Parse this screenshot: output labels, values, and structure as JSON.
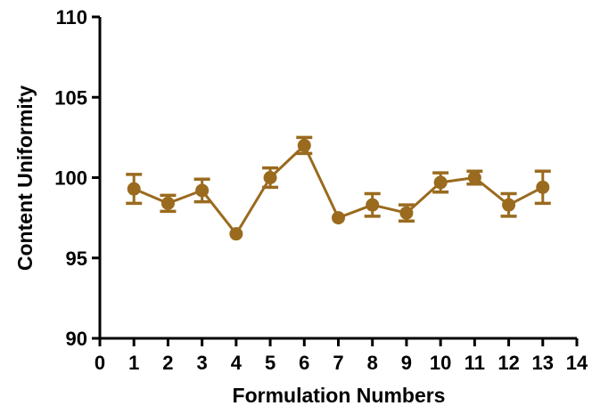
{
  "chart_data": {
    "type": "line",
    "title": "",
    "xlabel": "Formulation Numbers",
    "ylabel": "Content Uniformity",
    "xlim": [
      0,
      14
    ],
    "ylim": [
      90,
      110
    ],
    "xticks": [
      "0",
      "1",
      "2",
      "3",
      "4",
      "5",
      "6",
      "7",
      "8",
      "9",
      "10",
      "11",
      "12",
      "13",
      "14"
    ],
    "yticks": [
      "90",
      "95",
      "100",
      "105",
      "110"
    ],
    "grid": false,
    "series_color": "#9a6a1e",
    "series": [
      {
        "x": [
          1,
          2,
          3,
          4,
          5,
          6,
          7,
          8,
          9,
          10,
          11,
          12,
          13
        ],
        "y": [
          99.3,
          98.4,
          99.2,
          96.5,
          100.0,
          102.0,
          97.5,
          98.3,
          97.8,
          99.7,
          100.0,
          98.3,
          99.4
        ],
        "error": [
          0.9,
          0.5,
          0.7,
          0.0,
          0.6,
          0.5,
          0.0,
          0.7,
          0.5,
          0.6,
          0.4,
          0.7,
          1.0
        ]
      }
    ]
  }
}
